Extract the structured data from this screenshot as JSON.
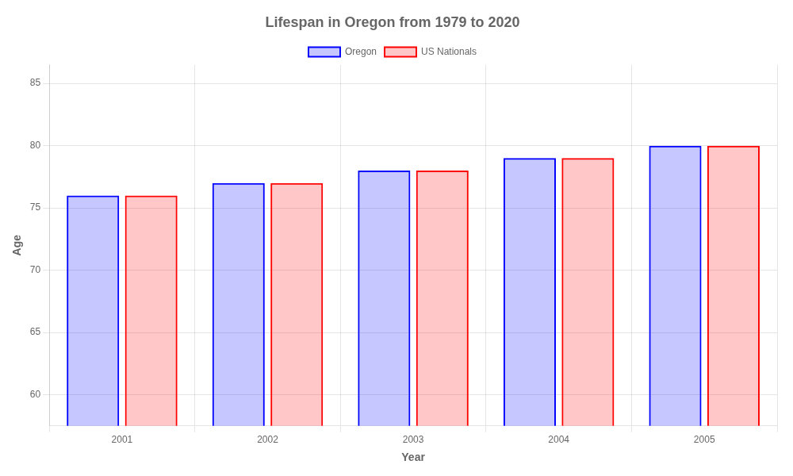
{
  "chart_data": {
    "type": "bar",
    "title": "Lifespan in Oregon from 1979 to 2020",
    "x_label": "Year",
    "y_label": "Age",
    "categories": [
      "2001",
      "2002",
      "2003",
      "2004",
      "2005"
    ],
    "series": [
      {
        "name": "Oregon",
        "color": "#0000ff",
        "values": [
          76,
          77,
          78,
          79,
          80
        ]
      },
      {
        "name": "US Nationals",
        "color": "#ff0000",
        "values": [
          76,
          77,
          78,
          79,
          80
        ]
      }
    ],
    "ylim": [
      57.5,
      86.5
    ],
    "yticks": [
      60,
      65,
      70,
      75,
      80,
      85
    ],
    "grid": true,
    "legend": "top"
  }
}
